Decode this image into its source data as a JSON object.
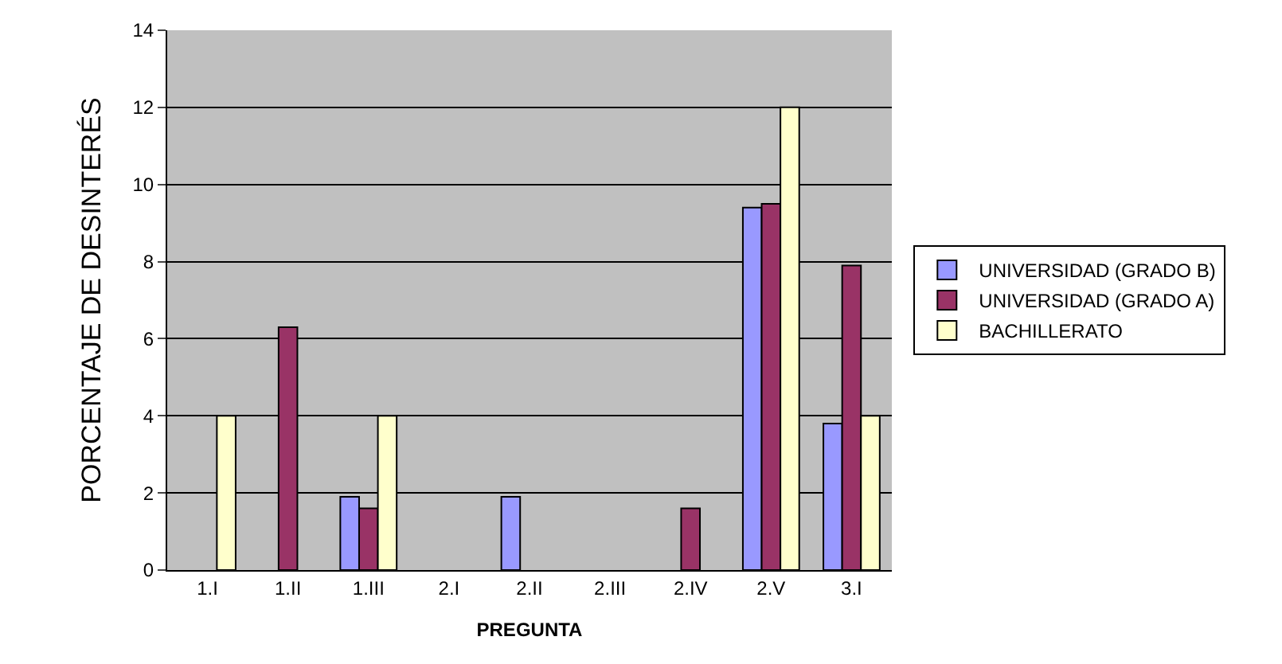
{
  "chart_data": {
    "type": "bar",
    "xlabel": "PREGUNTA",
    "ylabel": "PORCENTAJE DE DESINTERÉS",
    "categories": [
      "1.I",
      "1.II",
      "1.III",
      "2.I",
      "2.II",
      "2.III",
      "2.IV",
      "2.V",
      "3.I"
    ],
    "series": [
      {
        "name": "UNIVERSIDAD (GRADO B)",
        "color": "#9999ff",
        "values": [
          null,
          null,
          1.9,
          null,
          1.9,
          null,
          null,
          9.4,
          3.8
        ]
      },
      {
        "name": "UNIVERSIDAD (GRADO A)",
        "color": "#993366",
        "values": [
          null,
          6.3,
          1.6,
          null,
          null,
          null,
          1.6,
          9.5,
          7.9
        ]
      },
      {
        "name": "BACHILLERATO",
        "color": "#ffffcc",
        "values": [
          4,
          null,
          4,
          null,
          null,
          null,
          null,
          12,
          4
        ]
      }
    ],
    "ylim": [
      0,
      14
    ],
    "yticks": [
      0,
      2,
      4,
      6,
      8,
      10,
      12,
      14
    ],
    "grid": "y",
    "legend": "right"
  }
}
